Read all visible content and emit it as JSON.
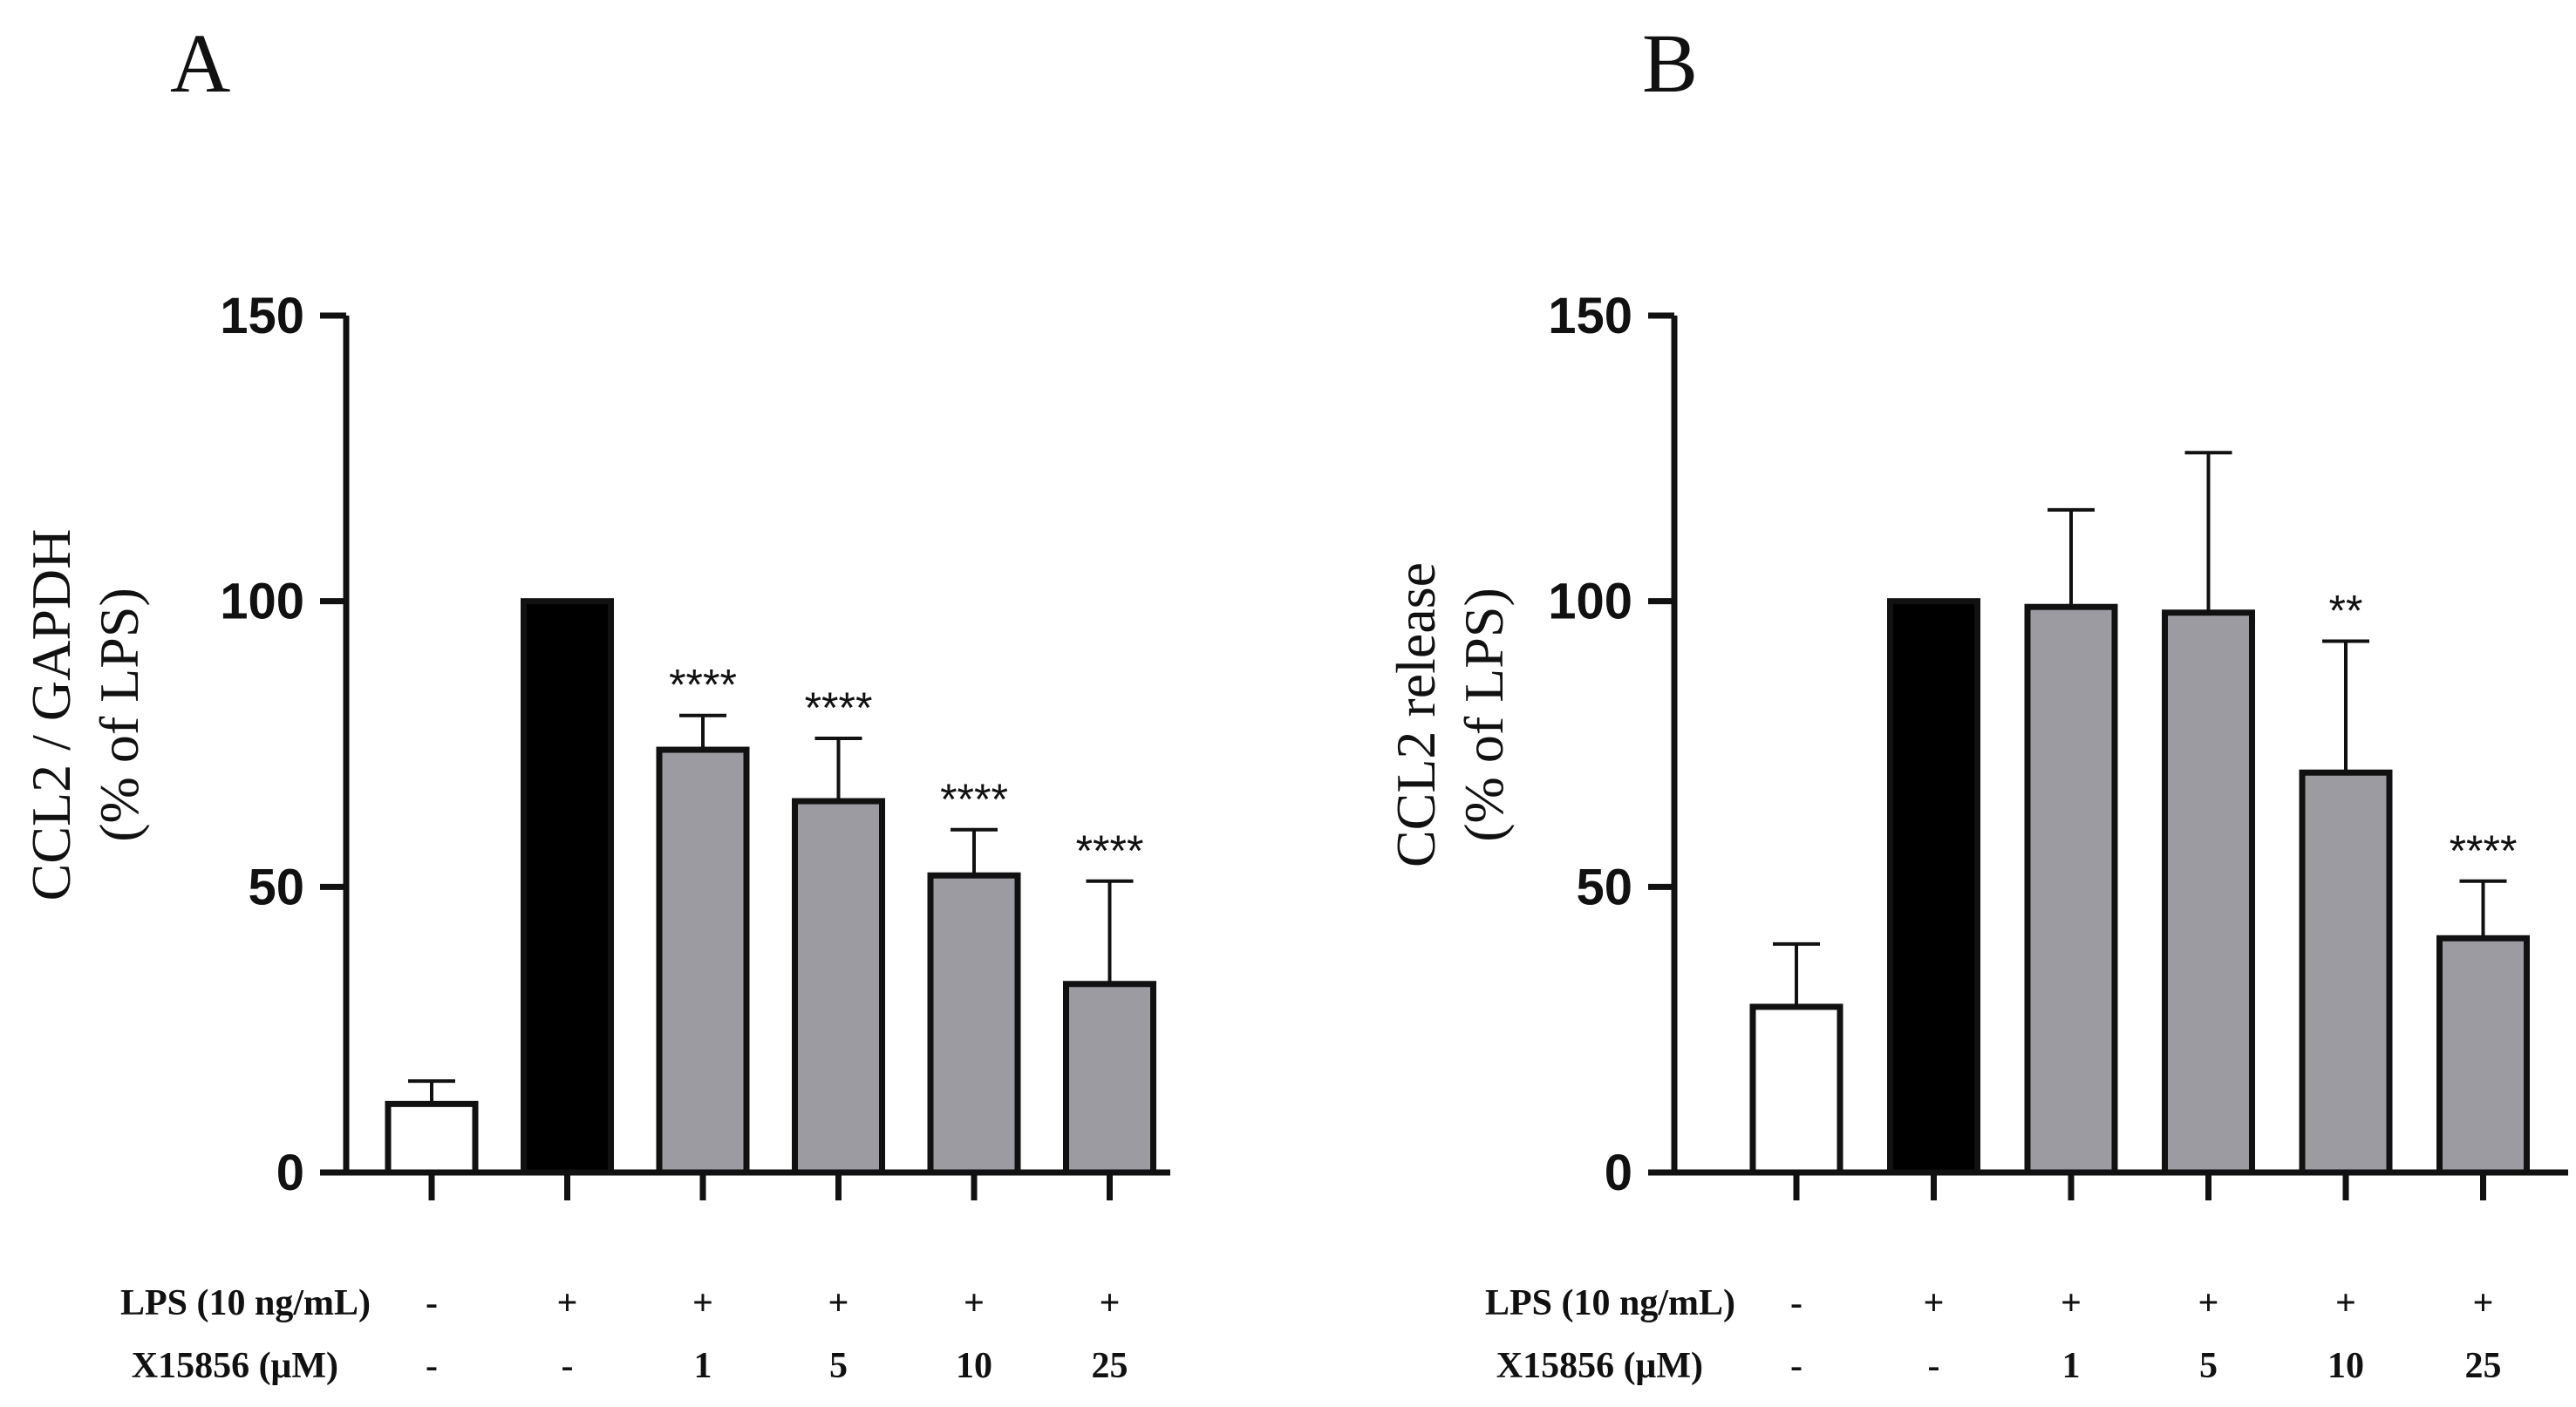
{
  "chart_data": [
    {
      "panel": "A",
      "type": "bar",
      "ylabel_line1": "CCL2 / GAPDH",
      "ylabel_line2": "(% of LPS)",
      "ylim": [
        0,
        150
      ],
      "yticks": [
        0,
        50,
        100,
        150
      ],
      "bars": [
        {
          "value": 12,
          "error": 4,
          "fill": "white",
          "sig": ""
        },
        {
          "value": 100,
          "error": 0,
          "fill": "black",
          "sig": ""
        },
        {
          "value": 74,
          "error": 6,
          "fill": "gray",
          "sig": "****"
        },
        {
          "value": 65,
          "error": 11,
          "fill": "gray",
          "sig": "****"
        },
        {
          "value": 52,
          "error": 8,
          "fill": "gray",
          "sig": "****"
        },
        {
          "value": 33,
          "error": 18,
          "fill": "gray",
          "sig": "****"
        }
      ],
      "row1_label": "LPS (10 ng/mL)",
      "row1_values": [
        "-",
        "+",
        "+",
        "+",
        "+",
        "+"
      ],
      "row2_label": "X15856 (μM)",
      "row2_values": [
        "-",
        "-",
        "1",
        "5",
        "10",
        "25"
      ]
    },
    {
      "panel": "B",
      "type": "bar",
      "ylabel_line1": "CCL2 release",
      "ylabel_line2": "(% of LPS)",
      "ylim": [
        0,
        150
      ],
      "yticks": [
        0,
        50,
        100,
        150
      ],
      "bars": [
        {
          "value": 29,
          "error": 11,
          "fill": "white",
          "sig": ""
        },
        {
          "value": 100,
          "error": 0,
          "fill": "black",
          "sig": ""
        },
        {
          "value": 99,
          "error": 17,
          "fill": "gray",
          "sig": ""
        },
        {
          "value": 98,
          "error": 28,
          "fill": "gray",
          "sig": ""
        },
        {
          "value": 70,
          "error": 23,
          "fill": "gray",
          "sig": "**"
        },
        {
          "value": 41,
          "error": 10,
          "fill": "gray",
          "sig": "****"
        }
      ],
      "row1_label": "LPS (10 ng/mL)",
      "row1_values": [
        "-",
        "+",
        "+",
        "+",
        "+",
        "+"
      ],
      "row2_label": "X15856 (μM)",
      "row2_values": [
        "-",
        "-",
        "1",
        "5",
        "10",
        "25"
      ]
    }
  ],
  "colors": {
    "white": "#ffffff",
    "black": "#000000",
    "gray": "#9b9ba1",
    "stroke": "#111111"
  }
}
